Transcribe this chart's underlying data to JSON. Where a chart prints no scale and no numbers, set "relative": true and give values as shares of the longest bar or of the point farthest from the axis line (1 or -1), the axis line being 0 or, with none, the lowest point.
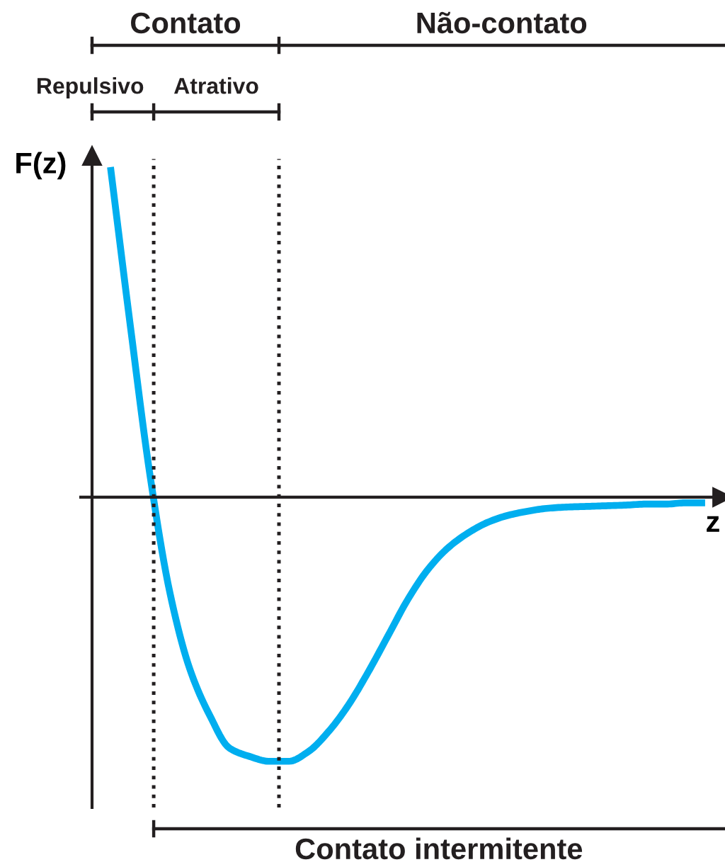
{
  "chart_data": {
    "type": "line",
    "relative": true,
    "xlabel": "z",
    "ylabel": "F(z)",
    "categories": [
      null,
      null,
      null,
      null,
      null,
      null,
      null,
      null,
      null,
      null,
      null,
      null,
      null,
      null,
      null,
      null,
      null,
      null,
      null,
      null,
      null,
      null,
      null,
      null,
      null,
      null,
      null,
      null,
      null,
      null,
      null
    ],
    "series": [
      {
        "color": "#00aeef",
        "values": [
          1.0,
          0.52,
          0.064,
          -0.29,
          -0.52,
          -0.66,
          -0.76,
          -0.785,
          -0.8,
          -0.8,
          -0.77,
          -0.71,
          -0.63,
          -0.53,
          -0.42,
          -0.31,
          -0.22,
          -0.155,
          -0.11,
          -0.077,
          -0.056,
          -0.043,
          -0.034,
          -0.03,
          -0.028,
          -0.026,
          -0.024,
          -0.021,
          -0.021,
          -0.017,
          -0.017
        ]
      }
    ],
    "annotations": [
      "Contato",
      "Não-contato",
      "Repulsivo",
      "Atrativo",
      "Contato intermitente"
    ],
    "legend": false,
    "marker": "none",
    "line_style": "solid"
  }
}
